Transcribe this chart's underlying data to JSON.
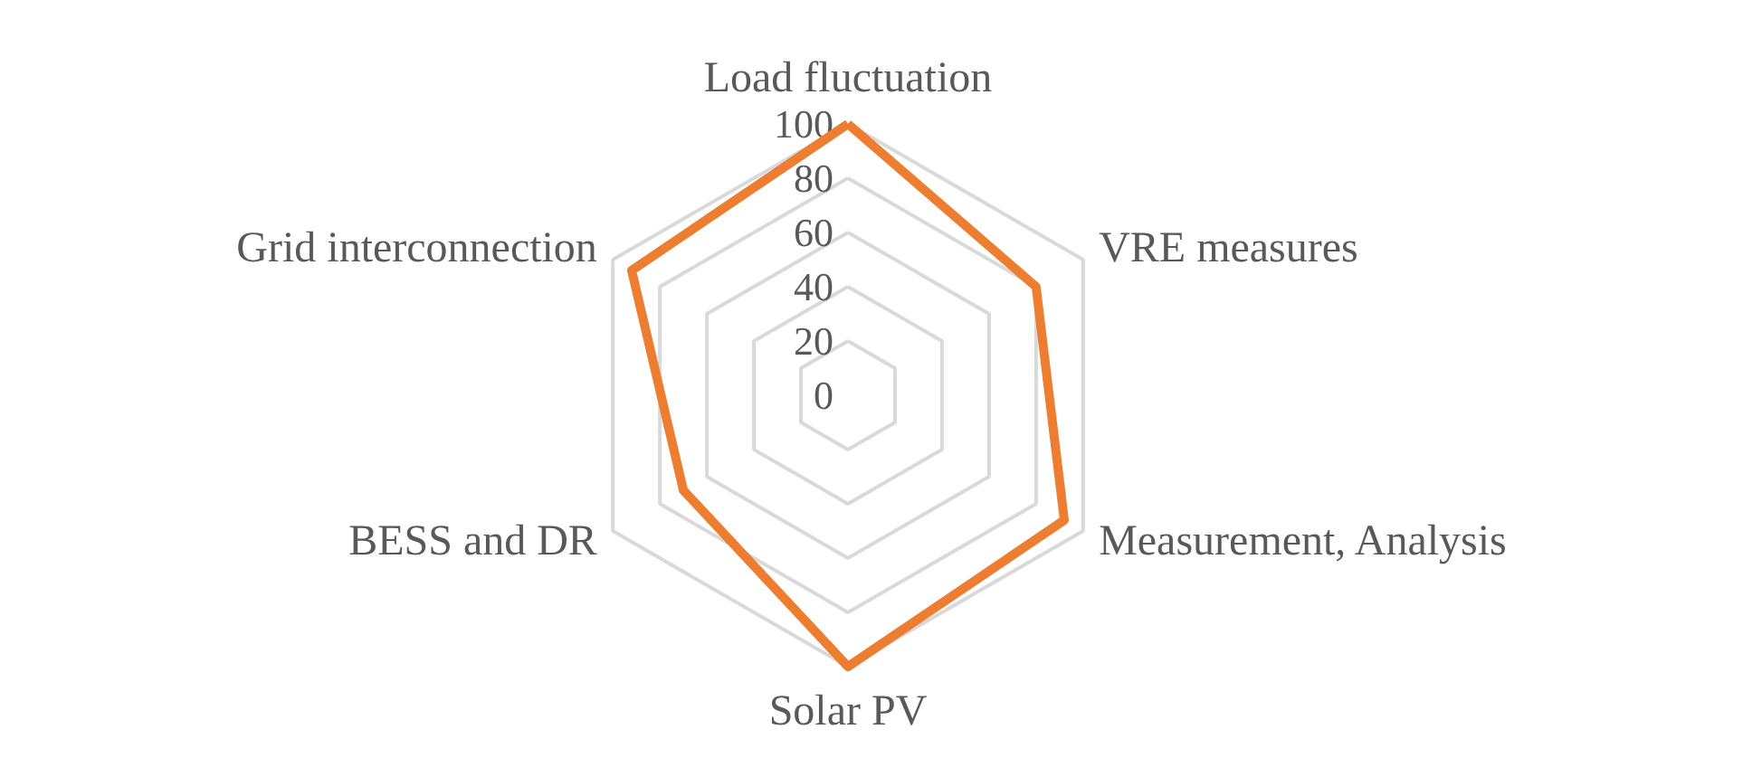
{
  "chart_data": {
    "type": "radar",
    "categories": [
      "Load fluctuation",
      "VRE measures",
      "Measurement, Analysis",
      "Solar PV",
      "BESS and DR",
      "Grid interconnection"
    ],
    "series": [
      {
        "color": "#ed7d31",
        "values": [
          100,
          80,
          92,
          100,
          70,
          92
        ]
      }
    ],
    "ylim": [
      0,
      100
    ],
    "yticks": [
      0,
      20,
      40,
      60,
      80,
      100
    ],
    "grid": true
  }
}
